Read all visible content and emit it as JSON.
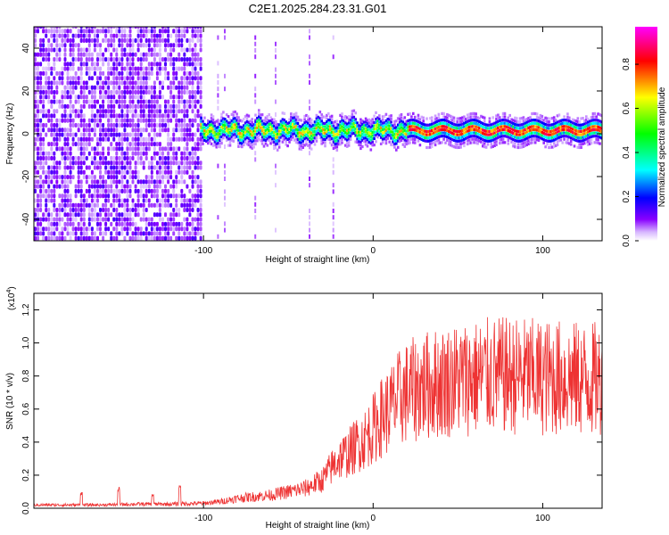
{
  "title": "C2E1.2025.284.23.31.G01",
  "chart_data": [
    {
      "type": "heatmap",
      "xlabel": "Height of straight line (km)",
      "ylabel": "Frequency (Hz)",
      "xlim": [
        -200,
        135
      ],
      "ylim": [
        -50,
        50
      ],
      "xticks": [
        -100,
        0,
        100
      ],
      "xtick_labels": [
        "-100",
        "0",
        "100"
      ],
      "yticks": [
        -40,
        -20,
        0,
        20,
        40
      ],
      "ytick_labels": [
        "-40",
        "-20",
        "0",
        "20",
        "40"
      ],
      "colorbar": {
        "label": "Normalized spectral amplitude",
        "range": [
          0,
          0.97
        ],
        "ticks": [
          0.0,
          0.2,
          0.4,
          0.6,
          0.8
        ],
        "tick_labels": [
          "0.0",
          "0.2",
          "0.4",
          "0.6",
          "0.8"
        ],
        "colormap": [
          "#ffffff",
          "#8800ff",
          "#0000ff",
          "#00ffff",
          "#00ff00",
          "#ffff00",
          "#ff0000",
          "#ff00ff"
        ]
      },
      "features": {
        "noise_region_x": [
          -200,
          -102
        ],
        "signal_band_start_x": -102,
        "signal_band_center_hz": 1.5,
        "signal_band_halfwidth_hz": 3,
        "strong_signal_start_x": 20
      }
    },
    {
      "type": "line",
      "xlabel": "Height of straight line (km)",
      "ylabel": "SNR (10 * v/v)",
      "exponent_label": "(x10",
      "exponent_sup": "4",
      "exponent_close": ")",
      "xlim": [
        -200,
        135
      ],
      "ylim": [
        0,
        1.3
      ],
      "xticks": [
        -100,
        0,
        100
      ],
      "xtick_labels": [
        "-100",
        "0",
        "100"
      ],
      "yticks": [
        0.0,
        0.2,
        0.4,
        0.6,
        0.8,
        1.0,
        1.2
      ],
      "ytick_labels": [
        "0.0",
        "0.2",
        "0.4",
        "0.6",
        "0.8",
        "1.0",
        "1.2"
      ],
      "line_color": "#ee3333",
      "series": [
        {
          "name": "SNR",
          "x": [
            -200,
            -180,
            -160,
            -140,
            -120,
            -100,
            -90,
            -80,
            -70,
            -60,
            -50,
            -40,
            -30,
            -25,
            -20,
            -15,
            -10,
            -5,
            0,
            5,
            10,
            15,
            20,
            25,
            30,
            40,
            50,
            60,
            70,
            80,
            90,
            100,
            110,
            120,
            130,
            135
          ],
          "values": [
            0.02,
            0.02,
            0.02,
            0.025,
            0.025,
            0.03,
            0.04,
            0.06,
            0.07,
            0.08,
            0.1,
            0.12,
            0.17,
            0.24,
            0.3,
            0.33,
            0.38,
            0.42,
            0.48,
            0.55,
            0.6,
            0.66,
            0.7,
            0.72,
            0.74,
            0.76,
            0.78,
            0.79,
            0.8,
            0.8,
            0.8,
            0.79,
            0.79,
            0.78,
            0.78,
            0.78
          ],
          "peaks": [
            {
              "x": -172,
              "y": 0.1
            },
            {
              "x": -150,
              "y": 0.13
            },
            {
              "x": -130,
              "y": 0.09
            },
            {
              "x": -114,
              "y": 0.15
            }
          ]
        }
      ]
    }
  ]
}
